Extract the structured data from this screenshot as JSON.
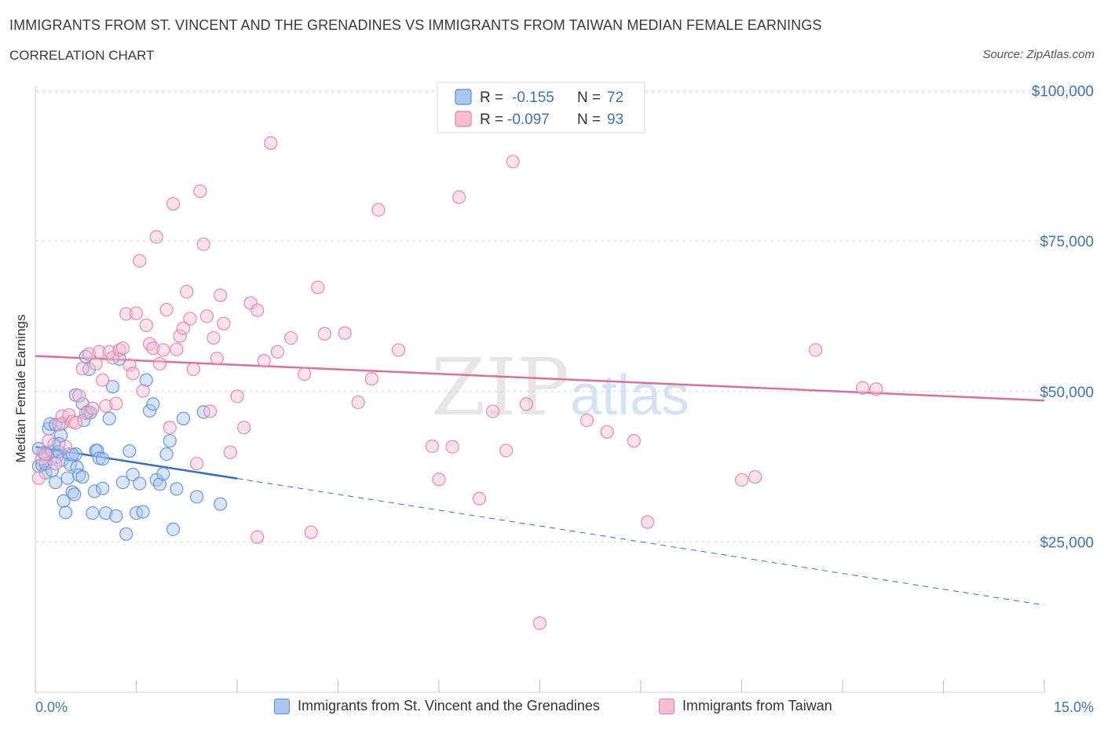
{
  "title": "IMMIGRANTS FROM ST. VINCENT AND THE GRENADINES VS IMMIGRANTS FROM TAIWAN MEDIAN FEMALE EARNINGS",
  "subtitle": "CORRELATION CHART",
  "source": "Source: ZipAtlas.com",
  "watermark": {
    "zip": "ZIP",
    "atlas": "atlas"
  },
  "colors": {
    "blue": "#5b8fdc",
    "blue_fill": "#a9c6f0",
    "blue_line": "#2f6ecf",
    "pink": "#e87fa0",
    "pink_fill": "#f6bcd0",
    "pink_line": "#e06f96",
    "axis_text": "#3b73c5",
    "grid": "#d9d9d9"
  },
  "legend": {
    "r_label": "R =",
    "n_label": "N =",
    "series": [
      {
        "r": "-0.155",
        "n": "72"
      },
      {
        "r": "-0.097",
        "n": "93"
      }
    ]
  },
  "chart_data": {
    "type": "scatter",
    "title": "IMMIGRANTS FROM ST. VINCENT AND THE GRENADINES VS IMMIGRANTS FROM TAIWAN MEDIAN FEMALE EARNINGS",
    "xlabel": "",
    "ylabel": "Median Female Earnings",
    "xlim": [
      0,
      15
    ],
    "ylim": [
      0,
      100000
    ],
    "x_tick_labels": [
      "0.0%",
      "15.0%"
    ],
    "y_ticks": [
      25000,
      50000,
      75000,
      100000
    ],
    "y_tick_labels": [
      "$25,000",
      "$50,000",
      "$75,000",
      "$100,000"
    ],
    "grid": true,
    "series": [
      {
        "name": "Immigrants from St. Vincent and the Grenadines",
        "color": "#5b8fdc",
        "trend": {
          "x0": 0,
          "y0": 40800,
          "x_solid_end": 3.0,
          "x1": 15,
          "y1": 14500
        },
        "points": [
          [
            0.05,
            37600
          ],
          [
            0.1,
            37800
          ],
          [
            0.12,
            39800
          ],
          [
            0.15,
            36500
          ],
          [
            0.18,
            39500
          ],
          [
            0.2,
            43800
          ],
          [
            0.22,
            44600
          ],
          [
            0.25,
            40100
          ],
          [
            0.28,
            41200
          ],
          [
            0.3,
            44500
          ],
          [
            0.32,
            39100
          ],
          [
            0.35,
            40000
          ],
          [
            0.38,
            42700
          ],
          [
            0.4,
            38600
          ],
          [
            0.42,
            31800
          ],
          [
            0.45,
            29900
          ],
          [
            0.48,
            35600
          ],
          [
            0.5,
            39600
          ],
          [
            0.52,
            37900
          ],
          [
            0.55,
            33300
          ],
          [
            0.58,
            32900
          ],
          [
            0.6,
            39600
          ],
          [
            0.62,
            37400
          ],
          [
            0.65,
            36100
          ],
          [
            0.7,
            48000
          ],
          [
            0.72,
            45200
          ],
          [
            0.75,
            55800
          ],
          [
            0.78,
            46600
          ],
          [
            0.8,
            53700
          ],
          [
            0.82,
            46500
          ],
          [
            0.85,
            29800
          ],
          [
            0.88,
            33400
          ],
          [
            0.9,
            40200
          ],
          [
            0.92,
            40200
          ],
          [
            0.95,
            38900
          ],
          [
            1.0,
            33900
          ],
          [
            1.05,
            29800
          ],
          [
            1.1,
            45500
          ],
          [
            1.15,
            50800
          ],
          [
            1.2,
            29300
          ],
          [
            1.25,
            55400
          ],
          [
            1.3,
            34900
          ],
          [
            1.35,
            26300
          ],
          [
            1.4,
            40100
          ],
          [
            1.45,
            36200
          ],
          [
            1.5,
            29800
          ],
          [
            1.55,
            34700
          ],
          [
            1.6,
            30000
          ],
          [
            1.65,
            51900
          ],
          [
            1.7,
            46800
          ],
          [
            1.75,
            47900
          ],
          [
            1.8,
            35300
          ],
          [
            1.85,
            34600
          ],
          [
            1.9,
            36300
          ],
          [
            1.95,
            39600
          ],
          [
            2.0,
            41800
          ],
          [
            2.05,
            27100
          ],
          [
            2.1,
            33800
          ],
          [
            2.2,
            45500
          ],
          [
            2.4,
            32500
          ],
          [
            2.5,
            46600
          ],
          [
            2.75,
            31300
          ],
          [
            0.3,
            34900
          ],
          [
            0.6,
            49400
          ],
          [
            0.15,
            38000
          ],
          [
            0.4,
            44700
          ],
          [
            0.7,
            35800
          ],
          [
            1.0,
            38800
          ],
          [
            0.25,
            36900
          ],
          [
            0.05,
            40500
          ],
          [
            0.35,
            41300
          ],
          [
            0.55,
            39500
          ]
        ]
      },
      {
        "name": "Immigrants from Taiwan",
        "color": "#e87fa0",
        "trend": {
          "x0": 0,
          "y0": 55900,
          "x1": 15,
          "y1": 48500
        },
        "points": [
          [
            0.05,
            35600
          ],
          [
            0.1,
            38800
          ],
          [
            0.15,
            39600
          ],
          [
            0.2,
            41800
          ],
          [
            0.3,
            38000
          ],
          [
            0.35,
            44500
          ],
          [
            0.4,
            45900
          ],
          [
            0.45,
            40800
          ],
          [
            0.5,
            46100
          ],
          [
            0.55,
            45000
          ],
          [
            0.6,
            44800
          ],
          [
            0.65,
            49300
          ],
          [
            0.7,
            53800
          ],
          [
            0.75,
            46400
          ],
          [
            0.8,
            56200
          ],
          [
            0.85,
            47200
          ],
          [
            0.9,
            54600
          ],
          [
            0.95,
            56600
          ],
          [
            1.0,
            51900
          ],
          [
            1.05,
            47600
          ],
          [
            1.1,
            56600
          ],
          [
            1.15,
            55600
          ],
          [
            1.2,
            48000
          ],
          [
            1.25,
            56900
          ],
          [
            1.3,
            57200
          ],
          [
            1.35,
            62900
          ],
          [
            1.4,
            54400
          ],
          [
            1.45,
            53000
          ],
          [
            1.5,
            63000
          ],
          [
            1.55,
            71700
          ],
          [
            1.6,
            50100
          ],
          [
            1.65,
            61000
          ],
          [
            1.7,
            57900
          ],
          [
            1.75,
            57200
          ],
          [
            1.8,
            75700
          ],
          [
            1.85,
            54600
          ],
          [
            1.9,
            56900
          ],
          [
            1.95,
            63600
          ],
          [
            2.0,
            44000
          ],
          [
            2.05,
            81200
          ],
          [
            2.1,
            57000
          ],
          [
            2.15,
            59200
          ],
          [
            2.2,
            60500
          ],
          [
            2.25,
            66600
          ],
          [
            2.3,
            62100
          ],
          [
            2.35,
            53700
          ],
          [
            2.4,
            38000
          ],
          [
            2.45,
            83300
          ],
          [
            2.5,
            74500
          ],
          [
            2.55,
            62500
          ],
          [
            2.6,
            46700
          ],
          [
            2.65,
            58900
          ],
          [
            2.7,
            55500
          ],
          [
            2.75,
            66000
          ],
          [
            2.8,
            61300
          ],
          [
            2.9,
            39900
          ],
          [
            3.0,
            49200
          ],
          [
            3.1,
            44000
          ],
          [
            3.2,
            64700
          ],
          [
            3.3,
            63500
          ],
          [
            3.4,
            55100
          ],
          [
            3.5,
            91300
          ],
          [
            3.6,
            56600
          ],
          [
            3.8,
            58900
          ],
          [
            4.0,
            52900
          ],
          [
            4.2,
            67300
          ],
          [
            4.3,
            59600
          ],
          [
            4.6,
            59700
          ],
          [
            4.8,
            48200
          ],
          [
            5.0,
            52100
          ],
          [
            5.1,
            80200
          ],
          [
            5.4,
            56900
          ],
          [
            5.9,
            40900
          ],
          [
            6.0,
            35400
          ],
          [
            6.2,
            40800
          ],
          [
            6.3,
            82300
          ],
          [
            6.6,
            32200
          ],
          [
            6.8,
            46700
          ],
          [
            7.0,
            40200
          ],
          [
            7.1,
            88200
          ],
          [
            7.3,
            47900
          ],
          [
            7.5,
            11500
          ],
          [
            8.2,
            45200
          ],
          [
            8.5,
            43300
          ],
          [
            8.9,
            41800
          ],
          [
            9.1,
            28300
          ],
          [
            10.5,
            35300
          ],
          [
            10.7,
            35800
          ],
          [
            11.6,
            56900
          ],
          [
            12.3,
            50600
          ],
          [
            12.5,
            50400
          ],
          [
            3.3,
            25800
          ],
          [
            4.1,
            26600
          ]
        ]
      }
    ]
  },
  "axis": {
    "x_min_label": "0.0%",
    "x_max_label": "15.0%"
  },
  "legend_bottom": [
    {
      "label": "Immigrants from St. Vincent and the Grenadines"
    },
    {
      "label": "Immigrants from Taiwan"
    }
  ]
}
